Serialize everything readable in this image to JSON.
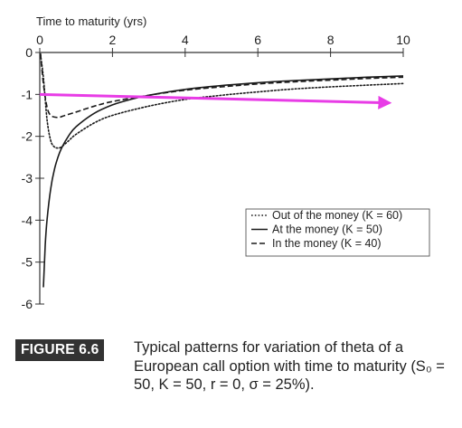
{
  "chart_data": {
    "type": "line",
    "xlabel": "Time to maturity (yrs)",
    "ylabel": "",
    "xlim": [
      0,
      10
    ],
    "ylim": [
      -6,
      0
    ],
    "x_ticks": [
      "0",
      "2",
      "4",
      "6",
      "8",
      "10"
    ],
    "y_ticks": [
      "0",
      "-1",
      "-2",
      "-3",
      "-4",
      "-5",
      "-6"
    ],
    "x_axis_position": "top",
    "grid": false,
    "legend_position": "lower-right",
    "series": [
      {
        "name": "Out of the money (K = 60)",
        "line_style": "dotted",
        "x": [
          0.02,
          0.1,
          0.2,
          0.3,
          0.4,
          0.5,
          0.6,
          0.8,
          1.0,
          1.5,
          2.0,
          3.0,
          4.0,
          5.0,
          6.0,
          7.0,
          8.0,
          9.0,
          10.0
        ],
        "y": [
          -0.05,
          -0.6,
          -1.6,
          -2.1,
          -2.25,
          -2.28,
          -2.25,
          -2.1,
          -1.95,
          -1.68,
          -1.5,
          -1.28,
          -1.12,
          -1.02,
          -0.94,
          -0.87,
          -0.82,
          -0.78,
          -0.74
        ]
      },
      {
        "name": "At the money (K = 50)",
        "line_style": "solid",
        "x": [
          0.1,
          0.15,
          0.2,
          0.3,
          0.4,
          0.5,
          0.6,
          0.8,
          1.0,
          1.5,
          2.0,
          2.5,
          3.0,
          4.0,
          5.0,
          6.0,
          7.0,
          8.0,
          9.0,
          10.0
        ],
        "y": [
          -5.6,
          -4.6,
          -4.0,
          -3.25,
          -2.8,
          -2.5,
          -2.28,
          -1.98,
          -1.77,
          -1.45,
          -1.25,
          -1.12,
          -1.02,
          -0.88,
          -0.79,
          -0.72,
          -0.67,
          -0.63,
          -0.59,
          -0.56
        ]
      },
      {
        "name": "In the money (K = 40)",
        "line_style": "dashed",
        "x": [
          0.02,
          0.1,
          0.2,
          0.3,
          0.5,
          0.7,
          1.0,
          1.5,
          2.0,
          3.0,
          4.0,
          5.0,
          6.0,
          7.0,
          8.0,
          9.0,
          10.0
        ],
        "y": [
          -0.02,
          -0.75,
          -1.3,
          -1.5,
          -1.55,
          -1.5,
          -1.42,
          -1.28,
          -1.17,
          -1.02,
          -0.9,
          -0.82,
          -0.75,
          -0.7,
          -0.66,
          -0.62,
          -0.59
        ]
      }
    ],
    "annotation_arrow": {
      "color": "#e83ce6",
      "from": [
        0,
        -1.0
      ],
      "to": [
        9.7,
        -1.2
      ]
    }
  },
  "caption": {
    "label": "FIGURE 6.6",
    "text": "Typical patterns for variation of theta of a European call option with time to maturity (S₀ = 50, K = 50, r = 0, σ = 25%)."
  }
}
